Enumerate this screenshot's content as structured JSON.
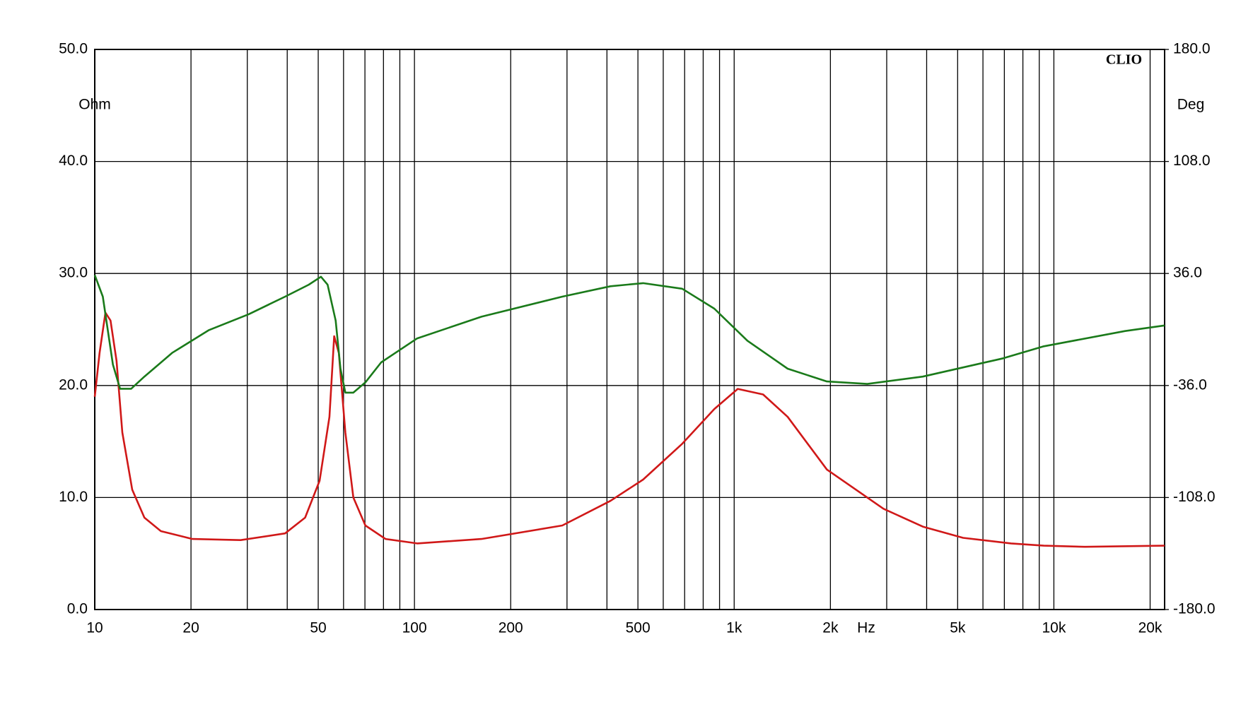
{
  "chart_data": {
    "type": "line",
    "brand": "CLIO",
    "y_label": "Ohm",
    "y2_label": "Deg",
    "x_label": "Hz",
    "x_scale": "log",
    "xlim": [
      10,
      22200
    ],
    "xticks": [
      10,
      20,
      50,
      100,
      200,
      500,
      {
        "value": 1000,
        "label": "1k"
      },
      {
        "value": 2000,
        "label": "2k"
      },
      {
        "value": 5000,
        "label": "5k"
      },
      {
        "value": 10000,
        "label": "10k"
      },
      {
        "value": 20000,
        "label": "20k"
      }
    ],
    "xgrid_minor": [
      30,
      40,
      60,
      70,
      80,
      90,
      300,
      400,
      600,
      700,
      800,
      900,
      3000,
      4000,
      6000,
      7000,
      8000,
      9000
    ],
    "ylim": [
      0,
      50
    ],
    "yticks": [
      {
        "value": 0,
        "label": "0.0"
      },
      {
        "value": 10,
        "label": "10.0"
      },
      {
        "value": 20,
        "label": "20.0"
      },
      {
        "value": 30,
        "label": "30.0"
      },
      {
        "value": 40,
        "label": "40.0"
      },
      {
        "value": 50,
        "label": "50.0"
      }
    ],
    "y2lim": [
      -180,
      180
    ],
    "y2ticks": [
      {
        "value": -180,
        "label": "-180.0"
      },
      {
        "value": -108,
        "label": "-108.0"
      },
      {
        "value": -36,
        "label": "-36.0"
      },
      {
        "value": 36,
        "label": "36.0"
      },
      {
        "value": 108,
        "label": "108.0"
      },
      {
        "value": 180,
        "label": "180.0"
      }
    ],
    "grid": true,
    "series": [
      {
        "color": "#d01818",
        "x": [
          10,
          10.35,
          10.8,
          11.2,
          11.7,
          12.2,
          13.1,
          14.3,
          16.1,
          20.2,
          28.6,
          39.4,
          45.5,
          50.5,
          54.2,
          56.1,
          58.0,
          60.8,
          64.4,
          70.2,
          81.2,
          102,
          162,
          290,
          410,
          519,
          688,
          867,
          1026,
          1232,
          1470,
          1950,
          2930,
          3890,
          5200,
          7350,
          9300,
          12500,
          22200
        ],
        "values": [
          19.0,
          22.9,
          26.5,
          25.8,
          22.2,
          15.8,
          10.7,
          8.2,
          7.0,
          6.3,
          6.2,
          6.8,
          8.2,
          11.5,
          17.2,
          24.4,
          22.9,
          15.8,
          10.0,
          7.5,
          6.3,
          5.9,
          6.3,
          7.5,
          9.7,
          11.6,
          14.8,
          17.9,
          19.7,
          19.2,
          17.2,
          12.5,
          9.0,
          7.4,
          6.4,
          5.9,
          5.7,
          5.6,
          5.7
        ]
      },
      {
        "color": "#1a7a1a",
        "axis": "y2",
        "x": [
          10,
          10.6,
          11.4,
          12.0,
          13.0,
          14.3,
          17.5,
          22.7,
          30.3,
          39.4,
          46.7,
          51.0,
          53.5,
          56.7,
          58.7,
          60.8,
          64.4,
          70.2,
          78.7,
          102,
          162,
          290,
          410,
          519,
          688,
          867,
          1100,
          1470,
          1950,
          2610,
          3890,
          6940,
          9300,
          16700,
          22200
        ],
        "values": [
          35.0,
          21.1,
          -22.6,
          -38.1,
          -38.1,
          -30.3,
          -14.9,
          -0.5,
          9.8,
          21.1,
          28.8,
          33.9,
          28.8,
          5.7,
          -25.2,
          -40.6,
          -40.6,
          -34.0,
          -21.1,
          -5.7,
          8.2,
          21.1,
          27.8,
          29.8,
          26.2,
          13.4,
          -7.2,
          -25.2,
          -33.4,
          -35.0,
          -30.3,
          -18.5,
          -10.8,
          -1.0,
          2.6
        ]
      }
    ]
  }
}
